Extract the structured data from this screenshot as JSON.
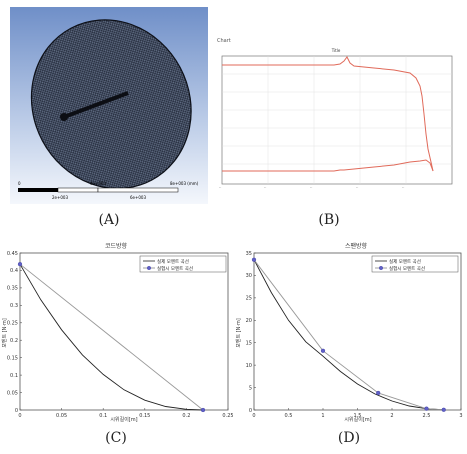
{
  "panel_a": {
    "caption": "(A)",
    "scale": {
      "t0": "0",
      "t1": "4e+003",
      "t2": "8e+003 (mm)",
      "t3": "2e+003",
      "t4": "6e+003"
    }
  },
  "panel_b": {
    "caption": "(B)",
    "title": "Title",
    "corner_label": "Chart"
  },
  "panel_c": {
    "caption": "(C)",
    "chart_data": {
      "type": "line",
      "title": "코드방향",
      "xlabel": "시위길이[m]",
      "ylabel": "모멘트 [N·m]",
      "xlim": [
        0,
        0.25
      ],
      "ylim": [
        0,
        0.45
      ],
      "xticks": [
        "0",
        "0.05",
        "0.1",
        "0.15",
        "0.2",
        "0.25"
      ],
      "yticks": [
        "0",
        "0.05",
        "0.1",
        "0.15",
        "0.2",
        "0.25",
        "0.3",
        "0.35",
        "0.4",
        "0.45"
      ],
      "legend": [
        "실제 모멘트 곡선",
        "실험시 모멘트 곡선"
      ],
      "series": [
        {
          "name": "실제 모멘트 곡선",
          "x": [
            0,
            0.025,
            0.05,
            0.075,
            0.1,
            0.125,
            0.15,
            0.175,
            0.2,
            0.22
          ],
          "y": [
            0.418,
            0.316,
            0.23,
            0.158,
            0.102,
            0.058,
            0.028,
            0.01,
            0.002,
            0.0
          ]
        },
        {
          "name": "실험시 모멘트 곡선",
          "x": [
            0,
            0.22
          ],
          "y": [
            0.418,
            0.0
          ]
        }
      ],
      "markers": {
        "x": [
          0,
          0.22
        ],
        "y": [
          0.418,
          0.0
        ]
      }
    }
  },
  "panel_d": {
    "caption": "(D)",
    "chart_data": {
      "type": "line",
      "title": "스팬방향",
      "xlabel": "시위길이[m]",
      "ylabel": "모멘트 [N·m]",
      "xlim": [
        0,
        3
      ],
      "ylim": [
        0,
        35
      ],
      "xticks": [
        "0",
        "0.5",
        "1",
        "1.5",
        "2",
        "2.5",
        "3"
      ],
      "yticks": [
        "0",
        "5",
        "10",
        "15",
        "20",
        "25",
        "30",
        "35"
      ],
      "legend": [
        "실제 모멘트 곡선",
        "실험시 모멘트 곡선"
      ],
      "series": [
        {
          "name": "실제 모멘트 곡선",
          "x": [
            0,
            0.25,
            0.5,
            0.75,
            1.0,
            1.25,
            1.5,
            1.75,
            2.0,
            2.25,
            2.5,
            2.75
          ],
          "y": [
            33.5,
            26.2,
            20.0,
            15.2,
            12.0,
            8.6,
            5.8,
            3.6,
            2.0,
            0.9,
            0.3,
            0.05
          ]
        },
        {
          "name": "실험시 모멘트 곡선",
          "x": [
            0,
            1.0,
            1.8,
            2.5,
            2.75
          ],
          "y": [
            33.5,
            13.2,
            3.8,
            0.3,
            0.05
          ]
        }
      ],
      "markers": {
        "x": [
          0,
          1.0,
          1.8,
          2.5,
          2.75
        ],
        "y": [
          33.5,
          13.2,
          3.8,
          0.3,
          0.05
        ]
      }
    }
  }
}
